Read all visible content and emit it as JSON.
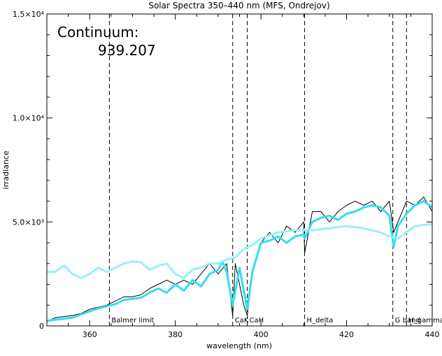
{
  "chart_data": {
    "type": "line",
    "title": "Solar Spectra 350–440 nm (MFS, Ondrejov)",
    "xlabel": "wavelength (nm)",
    "ylabel": "irradiance",
    "xlim": [
      350,
      440
    ],
    "ylim": [
      0,
      15000
    ],
    "x_ticks": [
      {
        "value": 360,
        "label": "360"
      },
      {
        "value": 380,
        "label": "380"
      },
      {
        "value": 400,
        "label": "400"
      },
      {
        "value": 420,
        "label": "420"
      },
      {
        "value": 440,
        "label": "440"
      }
    ],
    "y_ticks": [
      {
        "value": 0,
        "label": "0"
      },
      {
        "value": 5000,
        "label": "5.0×10³"
      },
      {
        "value": 10000,
        "label": "1.0×10⁴"
      },
      {
        "value": 15000,
        "label": "1.5×10⁴"
      }
    ],
    "continuum_label": "Continuum:",
    "continuum_value": "939.207",
    "reference_lines": [
      {
        "x": 364.6,
        "label": "Balmer  limit"
      },
      {
        "x": 393.4,
        "label": "CaK"
      },
      {
        "x": 396.8,
        "label": "CaH"
      },
      {
        "x": 410.2,
        "label": "H_delta"
      },
      {
        "x": 430.8,
        "label": "G band"
      },
      {
        "x": 434.0,
        "label": "H_gamma"
      }
    ],
    "series": [
      {
        "color": "#000000",
        "style": "observed",
        "x": [
          350,
          352,
          354,
          356,
          358,
          360,
          362,
          364,
          366,
          368,
          370,
          372,
          374,
          376,
          378,
          380,
          382,
          384,
          386,
          388,
          390,
          392,
          393.4,
          394,
          396,
          396.8,
          398,
          400,
          402,
          404,
          406,
          408,
          410,
          410.2,
          412,
          414,
          416,
          418,
          420,
          422,
          424,
          426,
          428,
          430,
          431,
          432,
          434,
          436,
          438,
          440
        ],
        "y": [
          200,
          400,
          450,
          500,
          600,
          800,
          900,
          1000,
          1200,
          1400,
          1400,
          1500,
          1800,
          2000,
          2200,
          2000,
          2200,
          2000,
          2500,
          3000,
          2500,
          3000,
          500,
          3000,
          1000,
          500,
          2500,
          4000,
          4500,
          4000,
          4800,
          4500,
          5000,
          3500,
          5500,
          5500,
          5000,
          5500,
          5800,
          6000,
          5800,
          6000,
          5500,
          6000,
          4500,
          5000,
          6000,
          5800,
          6200,
          5500
        ]
      },
      {
        "color": "#33ddee",
        "style": "smoothed",
        "x": [
          350,
          352,
          354,
          356,
          358,
          360,
          362,
          364,
          366,
          368,
          370,
          372,
          374,
          376,
          378,
          380,
          382,
          384,
          386,
          388,
          390,
          391,
          392,
          393.4,
          395,
          396.8,
          398,
          400,
          402,
          404,
          406,
          408,
          410,
          410.2,
          412,
          414,
          416,
          418,
          420,
          422,
          424,
          426,
          428,
          430,
          431,
          432,
          434,
          436,
          438,
          440
        ],
        "y": [
          250,
          300,
          350,
          400,
          550,
          700,
          850,
          950,
          1050,
          1250,
          1300,
          1350,
          1600,
          1800,
          1600,
          2000,
          1700,
          2200,
          1900,
          2500,
          2700,
          3100,
          2600,
          1000,
          2800,
          800,
          2600,
          4000,
          4100,
          4300,
          4000,
          4300,
          4400,
          4200,
          5000,
          5200,
          5300,
          5100,
          5400,
          5500,
          5700,
          5800,
          5700,
          5300,
          3800,
          4800,
          5400,
          5800,
          6000,
          5700
        ]
      },
      {
        "color": "#99eeff",
        "style": "reference",
        "x": [
          350,
          352,
          354,
          356,
          358,
          360,
          362,
          364,
          366,
          368,
          370,
          372,
          374,
          376,
          378,
          380,
          382,
          384,
          386,
          388,
          390,
          392,
          394,
          396,
          398,
          400,
          404,
          408,
          412,
          416,
          420,
          424,
          428,
          430,
          432,
          436,
          440
        ],
        "y": [
          2600,
          2600,
          2900,
          2500,
          2300,
          2500,
          2800,
          2600,
          2800,
          3000,
          3100,
          3050,
          2700,
          2900,
          3000,
          2500,
          2300,
          2700,
          2800,
          3000,
          3000,
          3200,
          3300,
          3700,
          3900,
          4200,
          4500,
          4600,
          4600,
          4700,
          4800,
          4700,
          4500,
          4300,
          4200,
          4800,
          4900
        ]
      }
    ]
  }
}
